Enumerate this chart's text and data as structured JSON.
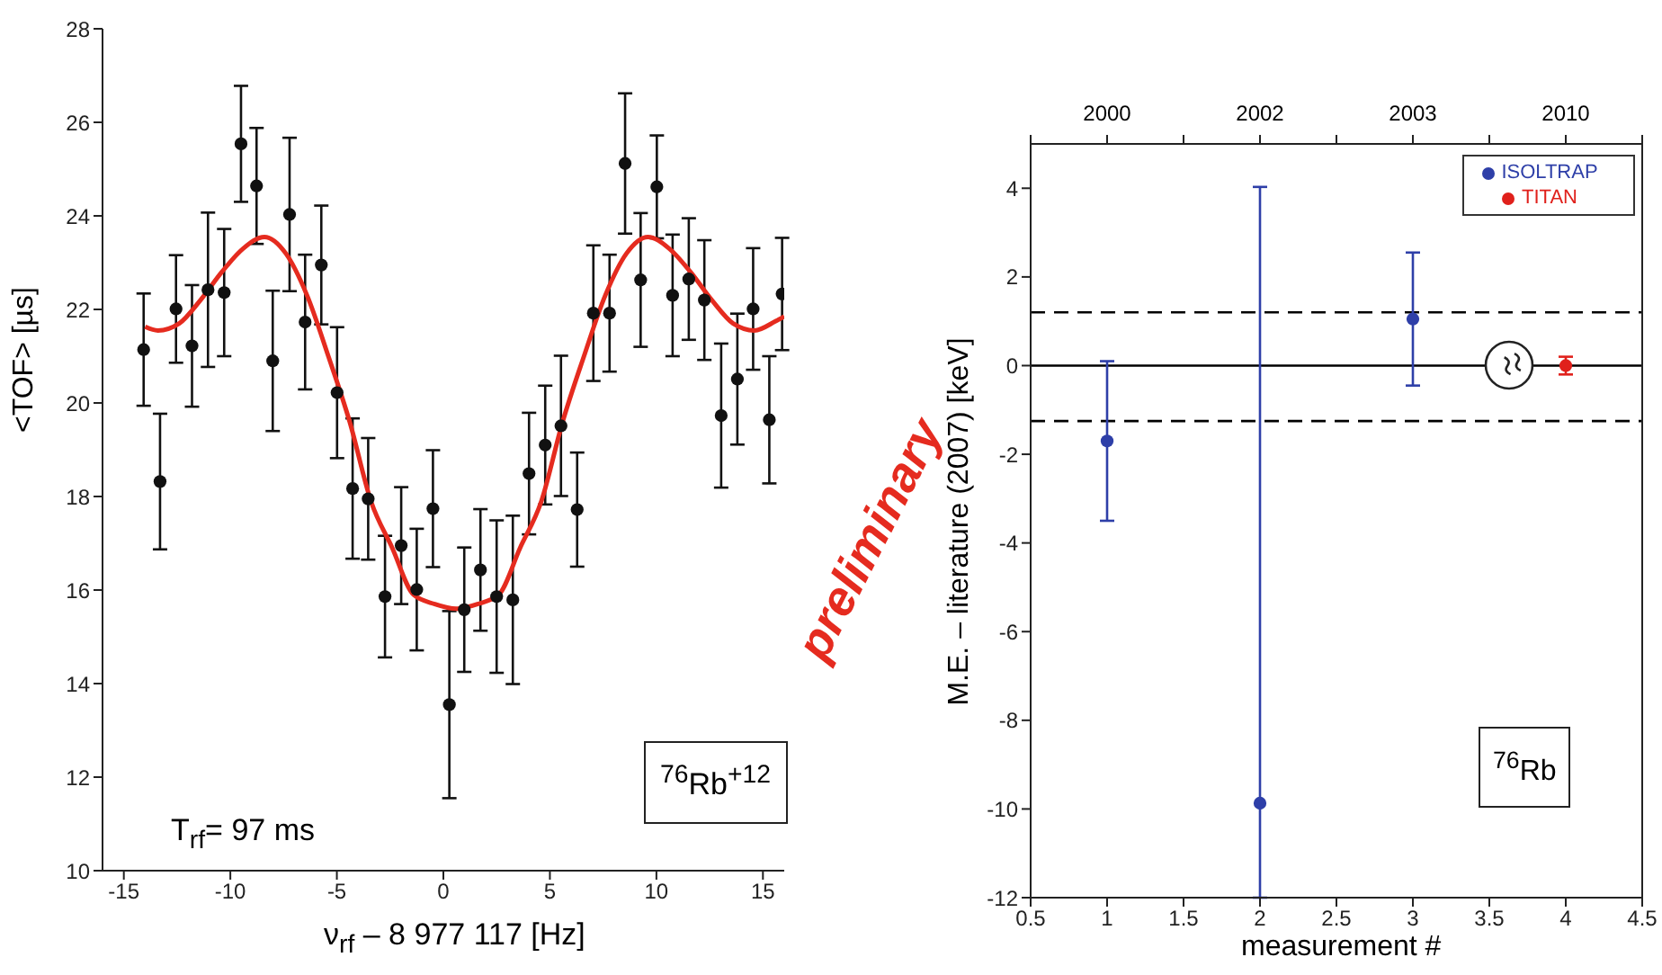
{
  "chart_data": [
    {
      "type": "scatter",
      "xlabel": "ν$_{rf}$ – 8 977 117 [Hz]",
      "ylabel": "<TOF> [µs]",
      "xlim": [
        -16,
        16
      ],
      "xticks": [
        -15,
        -10,
        -5,
        0,
        5,
        10,
        15
      ],
      "ylim": [
        10,
        28
      ],
      "yticks": [
        10,
        12,
        14,
        16,
        18,
        20,
        22,
        24,
        26,
        28
      ],
      "series": [
        {
          "type": "scatter",
          "color": "#111111",
          "marker": "circle",
          "x": [
            -14.07,
            -13.3,
            -12.55,
            -11.8,
            -11.05,
            -10.29,
            -9.5,
            -8.77,
            -8.01,
            -7.22,
            -6.49,
            -5.73,
            -4.99,
            -4.26,
            -3.53,
            -2.74,
            -1.98,
            -1.25,
            -0.49,
            0.28,
            0.98,
            1.74,
            2.5,
            3.26,
            4.02,
            4.78,
            5.52,
            6.28,
            7.04,
            7.8,
            8.53,
            9.26,
            10.02,
            10.76,
            11.52,
            12.25,
            13.04,
            13.8,
            14.54,
            15.3,
            15.9
          ],
          "values": [
            21.14,
            18.32,
            22.01,
            21.22,
            22.42,
            22.36,
            25.54,
            24.64,
            20.9,
            24.03,
            21.73,
            22.95,
            20.22,
            18.17,
            17.95,
            15.86,
            16.95,
            16.01,
            17.74,
            13.55,
            15.58,
            16.43,
            15.86,
            15.79,
            18.49,
            19.1,
            19.51,
            17.72,
            21.92,
            21.92,
            25.12,
            22.63,
            24.62,
            22.3,
            22.65,
            22.2,
            19.73,
            20.51,
            22.01,
            19.64,
            22.33
          ],
          "errors": [
            1.2,
            1.45,
            1.15,
            1.3,
            1.65,
            1.36,
            1.24,
            1.24,
            1.5,
            1.64,
            1.44,
            1.27,
            1.4,
            1.5,
            1.3,
            1.3,
            1.25,
            1.3,
            1.25,
            2.0,
            1.33,
            1.3,
            1.63,
            1.8,
            1.3,
            1.27,
            1.5,
            1.22,
            1.45,
            1.25,
            1.5,
            1.43,
            1.1,
            1.3,
            1.3,
            1.28,
            1.54,
            1.4,
            1.3,
            1.36,
            1.2
          ]
        },
        {
          "type": "line",
          "color": "#e52b1f",
          "x": [
            -14,
            -13.4,
            -12.4,
            -11.4,
            -10.4,
            -9.4,
            -8.4,
            -7.4,
            -6.4,
            -5.4,
            -4.4,
            -3.4,
            -2.4,
            -1.4,
            -0.4,
            0.6,
            1.6,
            2.6,
            3.6,
            4.6,
            5.6,
            6.6,
            7.6,
            8.6,
            9.6,
            10.6,
            11.6,
            12.6,
            13.6,
            14.6,
            15.6,
            16
          ],
          "values": [
            21.63,
            21.55,
            21.7,
            22.2,
            22.8,
            23.3,
            23.55,
            23.2,
            22.3,
            21.0,
            19.6,
            17.9,
            16.9,
            15.9,
            15.7,
            15.6,
            15.7,
            15.9,
            16.9,
            17.9,
            19.6,
            21.0,
            22.3,
            23.2,
            23.55,
            23.3,
            22.8,
            22.2,
            21.7,
            21.55,
            21.75,
            21.85
          ]
        }
      ],
      "annotations": [
        "T$_{rf}$= 97 ms",
        "$^{76}$Rb$^{+12}$",
        "preliminary"
      ]
    },
    {
      "type": "scatter",
      "xlabel": "measurement #",
      "ylabel": "M.E. – literature (2007) [keV]",
      "xlim": [
        0.5,
        4.5
      ],
      "xticks": [
        0.5,
        1,
        1.5,
        2,
        2.5,
        3,
        3.5,
        4,
        4.5
      ],
      "ylim": [
        -12,
        5
      ],
      "yticks": [
        -12,
        -10,
        -8,
        -6,
        -4,
        -2,
        0,
        2,
        4
      ],
      "legend": "top right",
      "series": [
        {
          "name": "ISOLTRAP",
          "type": "scatter",
          "color": "#2e3fa8",
          "marker": "circle",
          "x": [
            1,
            2,
            3
          ],
          "values": [
            -1.7,
            -9.87,
            1.05
          ],
          "errors": [
            1.8,
            [
              -12,
              4.03
            ],
            1.5
          ]
        },
        {
          "name": "TITAN",
          "type": "scatter",
          "color": "#e0201b",
          "marker": "circle",
          "x": [
            4
          ],
          "values": [
            0
          ],
          "errors": [
            0.2
          ]
        }
      ],
      "ref_lines": [
        {
          "axis": "y",
          "value": 0,
          "color": "#000000",
          "line_style": "solid"
        },
        {
          "axis": "y",
          "value": 1.2,
          "color": "#000000",
          "line_style": "dashed"
        },
        {
          "axis": "y",
          "value": -1.25,
          "color": "#000000",
          "line_style": "dashed"
        }
      ],
      "annotations": [
        "$^{76}$Rb",
        "2000",
        "2002",
        "2003",
        "2010"
      ]
    }
  ]
}
